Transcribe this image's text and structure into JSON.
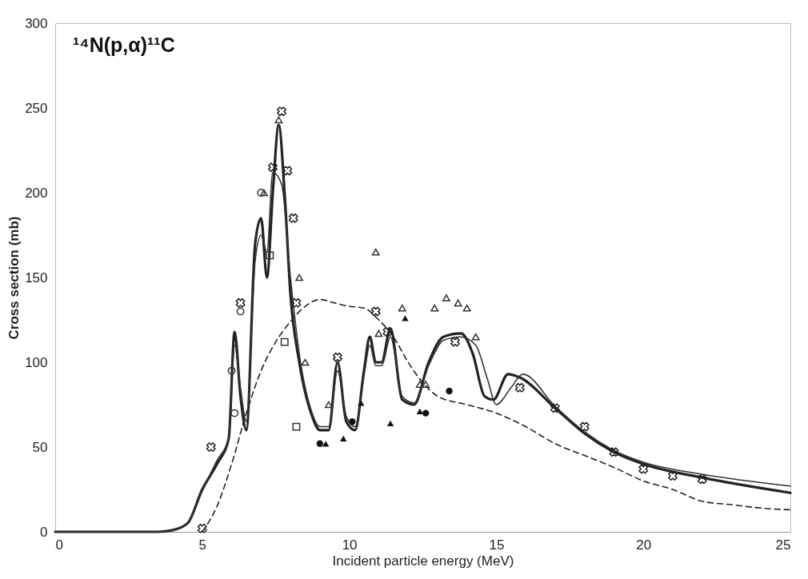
{
  "chart_data": {
    "type": "line",
    "xlabel": "Incident particle energy (MeV)",
    "ylabel": "Cross section (mb)",
    "annotations": [
      "¹⁴N(p,α)¹¹C"
    ],
    "xlim": [
      0,
      25
    ],
    "xticks": [
      0,
      5,
      10,
      15,
      20,
      25
    ],
    "ylim": [
      0,
      300
    ],
    "yticks": [
      0,
      50,
      100,
      150,
      200,
      250,
      300
    ],
    "grid": false,
    "series": [
      {
        "type": "line",
        "color": "#222222",
        "line_style": "solid",
        "x": [
          0,
          3.5,
          4,
          4.5,
          5,
          5.5,
          5.9,
          6.1,
          6.3,
          6.5,
          6.8,
          7,
          7.2,
          7.4,
          7.6,
          7.8,
          8,
          8.3,
          8.7,
          9,
          9.3,
          9.6,
          9.9,
          10.2,
          10.5,
          10.7,
          10.9,
          11.1,
          11.4,
          11.8,
          12.2,
          12.7,
          13.2,
          13.8,
          14.2,
          14.6,
          14.9,
          15.4,
          15.8,
          17,
          18,
          19,
          20,
          22,
          25
        ],
        "values": [
          0,
          0,
          1,
          5,
          25,
          40,
          55,
          118,
          80,
          60,
          170,
          185,
          150,
          200,
          240,
          200,
          140,
          100,
          70,
          60,
          60,
          100,
          65,
          60,
          95,
          115,
          100,
          100,
          120,
          78,
          75,
          100,
          115,
          117,
          105,
          80,
          78,
          93,
          91,
          73,
          58,
          47,
          40,
          32,
          23
        ]
      },
      {
        "type": "line",
        "color": "#333333",
        "line_style": "solid",
        "x": [
          0,
          3.5,
          4,
          4.5,
          5,
          5.5,
          5.9,
          6.1,
          6.3,
          6.5,
          6.8,
          7,
          7.2,
          7.4,
          7.7,
          8,
          8.3,
          8.7,
          9,
          9.3,
          9.6,
          9.9,
          10.2,
          10.5,
          10.7,
          10.9,
          11.1,
          11.4,
          11.8,
          12.2,
          12.7,
          13.2,
          13.8,
          14.3,
          14.7,
          15,
          15.5,
          15.9,
          17,
          18,
          19,
          20,
          22,
          25
        ],
        "values": [
          0,
          0,
          1,
          5,
          24,
          42,
          55,
          110,
          85,
          65,
          160,
          175,
          165,
          212,
          205,
          150,
          105,
          72,
          62,
          62,
          95,
          68,
          62,
          92,
          110,
          98,
          98,
          115,
          80,
          76,
          98,
          113,
          115,
          110,
          90,
          75,
          85,
          93,
          74,
          59,
          48,
          41,
          34,
          27
        ]
      },
      {
        "type": "line",
        "color": "#222222",
        "line_style": "dashed",
        "x": [
          5,
          5.5,
          6,
          6.5,
          7,
          7.5,
          8,
          8.5,
          9,
          9.5,
          10,
          10.5,
          11,
          11.5,
          12,
          12.5,
          13,
          14,
          15,
          16,
          17,
          18,
          19,
          20,
          21,
          22,
          23,
          24,
          25
        ],
        "values": [
          0,
          15,
          40,
          70,
          95,
          112,
          124,
          133,
          137,
          135,
          133,
          132,
          125,
          115,
          100,
          88,
          80,
          75,
          70,
          62,
          52,
          45,
          38,
          30,
          25,
          18,
          16,
          14,
          13
        ]
      },
      {
        "type": "scatter",
        "marker": "cross",
        "color": "#222222",
        "x": [
          5,
          5.3,
          6.3,
          7.4,
          7.7,
          7.9,
          8.1,
          8.2,
          9.6,
          10.9,
          11.3,
          13.6,
          15.8,
          17,
          18,
          19,
          20,
          21,
          22
        ],
        "values": [
          2,
          50,
          135,
          215,
          248,
          213,
          185,
          135,
          103,
          130,
          118,
          112,
          85,
          73,
          62,
          47,
          37,
          33,
          31
        ]
      },
      {
        "type": "scatter",
        "marker": "triangle",
        "color": "#333333",
        "x": [
          7.1,
          7.6,
          8.3,
          8.5,
          9.3,
          10.9,
          11,
          11.8,
          12.4,
          12.6,
          12.9,
          13.3,
          13.7,
          14,
          14.3
        ],
        "values": [
          200,
          243,
          150,
          100,
          75,
          165,
          117,
          132,
          87,
          87,
          132,
          138,
          135,
          132,
          115
        ]
      },
      {
        "type": "scatter",
        "marker": "triangle",
        "color": "#111111",
        "x": [
          9.2,
          9.8,
          10.4,
          11.4,
          11.9,
          12.4
        ],
        "values": [
          52,
          55,
          76,
          64,
          126,
          71
        ]
      },
      {
        "type": "scatter",
        "marker": "circle",
        "color": "#333333",
        "x": [
          6,
          6.1,
          6.3,
          7
        ],
        "values": [
          95,
          70,
          130,
          200
        ]
      },
      {
        "type": "scatter",
        "marker": "circle",
        "color": "#111111",
        "x": [
          9,
          10.1,
          12.6,
          13.4
        ],
        "values": [
          52,
          65,
          70,
          83
        ]
      },
      {
        "type": "scatter",
        "marker": "square",
        "color": "#333333",
        "x": [
          7.3,
          7.8,
          8.2
        ],
        "values": [
          163,
          112,
          62
        ]
      }
    ]
  }
}
